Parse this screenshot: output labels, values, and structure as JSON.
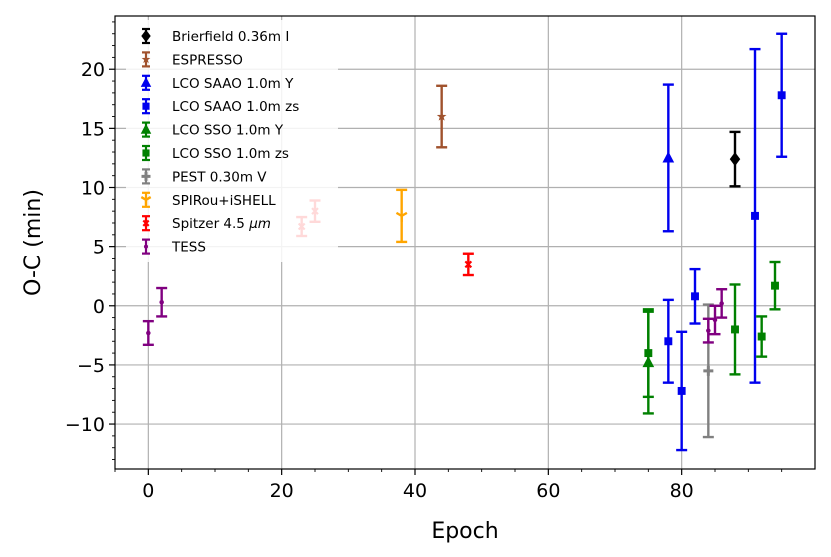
{
  "chart_data": {
    "type": "scatter",
    "title": "",
    "xlabel": "Epoch",
    "ylabel": "O-C (min)",
    "xlim": [
      -5,
      100
    ],
    "ylim": [
      -13.8,
      24.5
    ],
    "xticks": [
      0,
      20,
      40,
      60,
      80
    ],
    "xtick_labels": [
      "0",
      "20",
      "40",
      "60",
      "80"
    ],
    "yticks": [
      -10,
      -5,
      0,
      5,
      10,
      15,
      20
    ],
    "ytick_labels": [
      "−10",
      "−5",
      "0",
      "5",
      "10",
      "15",
      "20"
    ],
    "grid": true,
    "legend_position": "top-left",
    "series": [
      {
        "name": "Brierfield 0.36m I",
        "label": "Brierfield 0.36m I",
        "color": "#000000",
        "marker": "diamond",
        "points": [
          {
            "x": 88,
            "y": 12.4,
            "err": 2.3
          }
        ]
      },
      {
        "name": "ESPRESSO",
        "label": "ESPRESSO",
        "color": "#a0522d",
        "marker": "star",
        "points": [
          {
            "x": 44,
            "y": 16.0,
            "err": 2.6
          }
        ]
      },
      {
        "name": "LCO SAAO 1.0m Y",
        "label": "LCO SAAO 1.0m Y",
        "color": "#0000ee",
        "marker": "triangle",
        "points": [
          {
            "x": 78,
            "y": 12.5,
            "err": 6.2
          }
        ]
      },
      {
        "name": "LCO SAAO 1.0m zs",
        "label": "LCO SAAO 1.0m zs",
        "color": "#0000ee",
        "marker": "square",
        "points": [
          {
            "x": 78,
            "y": -3.0,
            "err": 3.5
          },
          {
            "x": 80,
            "y": -7.2,
            "err": 5.0
          },
          {
            "x": 82,
            "y": 0.8,
            "err": 2.3
          },
          {
            "x": 91,
            "y": 7.6,
            "err": 14.1
          },
          {
            "x": 95,
            "y": 17.8,
            "err": 5.2
          }
        ]
      },
      {
        "name": "LCO SSO 1.0m Y",
        "label": "LCO SSO 1.0m Y",
        "color": "#008000",
        "marker": "triangle",
        "points": [
          {
            "x": 75,
            "y": -4.8,
            "err": 4.3
          }
        ]
      },
      {
        "name": "LCO SSO 1.0m zs",
        "label": "LCO SSO 1.0m zs",
        "color": "#008000",
        "marker": "square",
        "points": [
          {
            "x": 75,
            "y": -4.0,
            "err": 3.7
          },
          {
            "x": 88,
            "y": -2.0,
            "err": 3.8
          },
          {
            "x": 92,
            "y": -2.6,
            "err": 1.7
          },
          {
            "x": 94,
            "y": 1.7,
            "err": 2.0
          }
        ]
      },
      {
        "name": "PEST 0.30m V",
        "label": "PEST 0.30m V",
        "color": "#808080",
        "marker": "plus",
        "points": [
          {
            "x": 84,
            "y": -5.5,
            "err": 5.6
          }
        ]
      },
      {
        "name": "SPIRou+iSHELL",
        "label": "SPIRou+iSHELL",
        "color": "#ffa500",
        "marker": "tri-down",
        "points": [
          {
            "x": 38,
            "y": 7.6,
            "err": 2.2
          }
        ]
      },
      {
        "name": "Spitzer 4.5 μm",
        "label": "Spitzer 4.5 ",
        "label_math": "μm",
        "color": "#ff0000",
        "marker": "x",
        "points": [
          {
            "x": 23,
            "y": 6.7,
            "err": 0.8
          },
          {
            "x": 25,
            "y": 8.0,
            "err": 0.9
          },
          {
            "x": 48,
            "y": 3.5,
            "err": 0.9
          }
        ]
      },
      {
        "name": "TESS",
        "label": "TESS",
        "color": "#800080",
        "marker": "dot",
        "points": [
          {
            "x": 0,
            "y": -2.3,
            "err": 1.0
          },
          {
            "x": 2,
            "y": 0.3,
            "err": 1.2
          },
          {
            "x": 84,
            "y": -2.1,
            "err": 1.0
          },
          {
            "x": 85,
            "y": -1.2,
            "err": 1.2
          },
          {
            "x": 86,
            "y": 0.2,
            "err": 1.2
          }
        ]
      }
    ]
  }
}
